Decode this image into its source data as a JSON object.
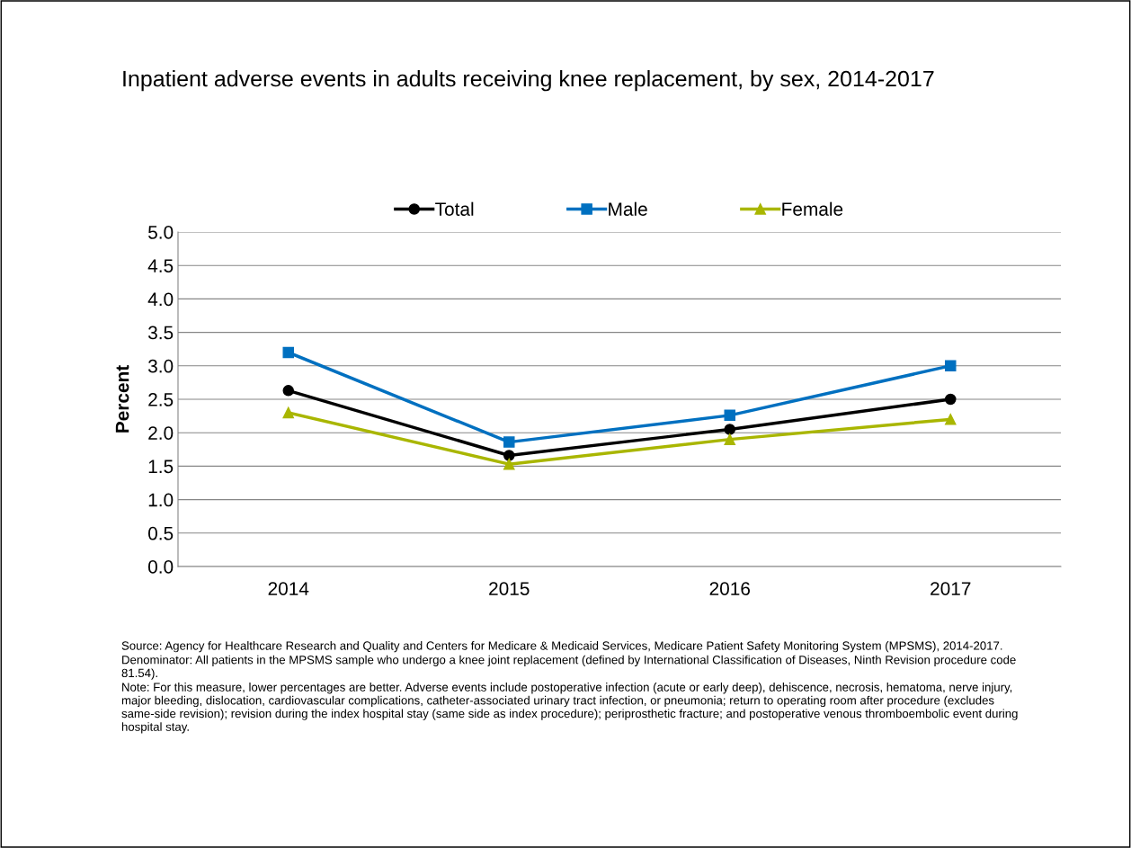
{
  "chart_data": {
    "type": "line",
    "title": "Inpatient adverse events in adults receiving knee replacement, by sex, 2014-2017",
    "ylabel": "Percent",
    "categories": [
      "2014",
      "2015",
      "2016",
      "2017"
    ],
    "series": [
      {
        "name": "Total",
        "color": "#000000",
        "marker": "circle",
        "values": [
          2.63,
          1.66,
          2.05,
          2.5
        ]
      },
      {
        "name": "Male",
        "color": "#0070c0",
        "marker": "square",
        "values": [
          3.2,
          1.86,
          2.26,
          3.0
        ]
      },
      {
        "name": "Female",
        "color": "#a9b600",
        "marker": "triangle",
        "values": [
          2.3,
          1.53,
          1.9,
          2.2
        ]
      }
    ],
    "ylim": [
      0,
      5
    ],
    "yticks": [
      {
        "value": 0,
        "label": "0.0"
      },
      {
        "value": 0.5,
        "label": "0.5"
      },
      {
        "value": 1,
        "label": "1.0"
      },
      {
        "value": 1.5,
        "label": "1.5"
      },
      {
        "value": 2,
        "label": "2.0"
      },
      {
        "value": 2.5,
        "label": "2.5"
      },
      {
        "value": 3,
        "label": "3.0"
      },
      {
        "value": 3.5,
        "label": "3.5"
      },
      {
        "value": 4,
        "label": "4.0"
      },
      {
        "value": 4.5,
        "label": "4.5"
      },
      {
        "value": 5,
        "label": "5.0"
      }
    ],
    "grid": "y",
    "legend": "top",
    "line_style": "solid",
    "annotations": [
      "Source: Agency for Healthcare Research and Quality and Centers for Medicare & Medicaid Services, Medicare Patient Safety Monitoring System (MPSMS), 2014-2017.",
      "Denominator: All patients in the MPSMS sample who undergo a knee joint replacement (defined by International Classification of Diseases, Ninth Revision procedure code 81.54).",
      "Note: For this measure, lower percentages are better. Adverse events include postoperative infection (acute or early deep), dehiscence, necrosis, hematoma, nerve injury, major bleeding, dislocation, cardiovascular complications, catheter-associated urinary tract infection, or pneumonia; return to operating room after procedure (excludes same-side revision); revision during the index hospital stay (same side as index procedure); periprosthetic fracture; and postoperative venous thromboembolic event during hospital stay."
    ]
  }
}
